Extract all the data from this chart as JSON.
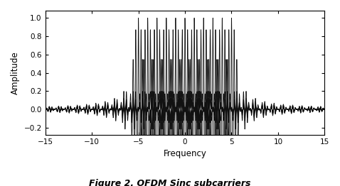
{
  "title": "Figure 2. OFDM Sinc subcarriers",
  "xlabel": "Frequency",
  "ylabel": "Amplitude",
  "xlim": [
    -15,
    15
  ],
  "ylim": [
    -0.28,
    1.08
  ],
  "xticks": [
    -15,
    -10,
    -5,
    0,
    5,
    10,
    15
  ],
  "yticks": [
    -0.2,
    0,
    0.2,
    0.4,
    0.6,
    0.8,
    1
  ],
  "subcarrier_centers": [
    -5,
    -4,
    -3,
    -2,
    -1,
    0,
    1,
    2,
    3,
    4,
    5
  ],
  "modulation_freq": 3.5,
  "line_color": "#111111",
  "line_width": 0.6,
  "background_color": "#ffffff",
  "figsize": [
    4.78,
    2.62
  ],
  "dpi": 100,
  "tick_fontsize": 7.5,
  "label_fontsize": 8.5,
  "caption_fontsize": 9
}
